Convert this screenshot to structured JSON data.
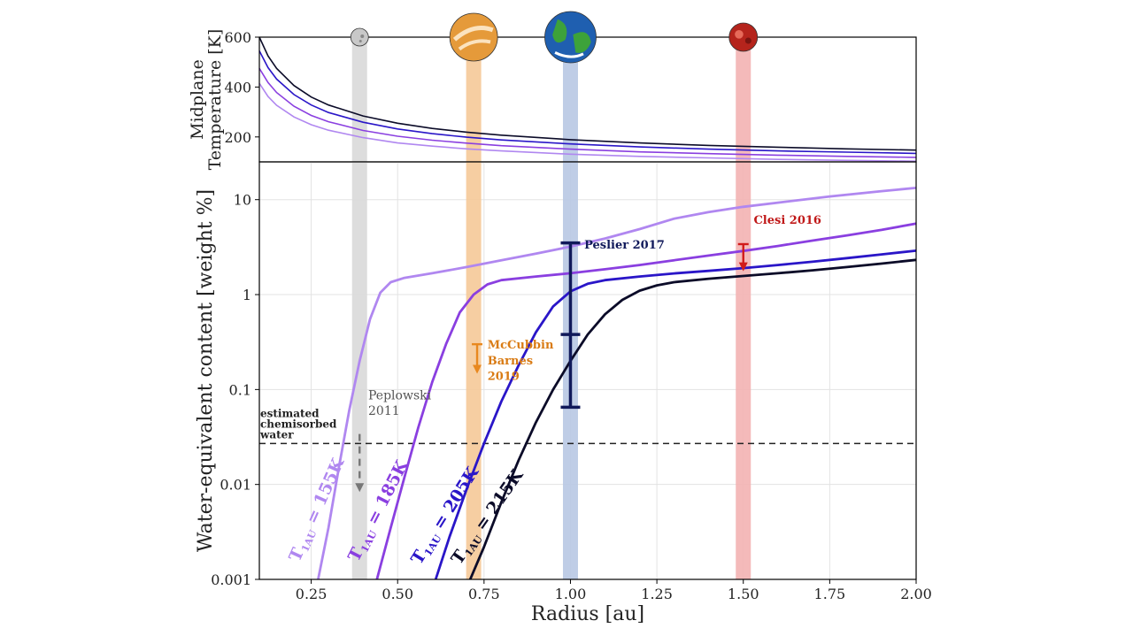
{
  "chart_data": [
    {
      "type": "line",
      "panel": "top",
      "ylabel_lines": [
        "Midplane",
        "Temperature [K]"
      ],
      "xlim": [
        0.1,
        2.0
      ],
      "ylim": [
        100,
        600
      ],
      "yticks": [
        200,
        400,
        600
      ],
      "ytick_labels": [
        "200",
        "400",
        "600"
      ],
      "grid": false,
      "x": [
        0.1,
        0.125,
        0.15,
        0.2,
        0.25,
        0.3,
        0.4,
        0.5,
        0.6,
        0.7,
        0.8,
        1.0,
        1.2,
        1.4,
        1.6,
        1.8,
        2.0
      ],
      "series": [
        {
          "color": "#b087f0",
          "values": [
            415,
            362,
            327,
            280,
            249,
            227,
            197,
            176,
            163,
            152,
            144,
            131,
            122,
            116,
            110,
            106,
            103
          ]
        },
        {
          "color": "#8a3fe0",
          "values": [
            475,
            418,
            378,
            323,
            286,
            261,
            226,
            203,
            187,
            175,
            165,
            151,
            140,
            133,
            127,
            122,
            118
          ]
        },
        {
          "color": "#2a16c8",
          "values": [
            545,
            478,
            432,
            370,
            328,
            298,
            259,
            232,
            213,
            199,
            188,
            172,
            160,
            151,
            144,
            139,
            134
          ]
        },
        {
          "color": "#0b0b28",
          "values": [
            600,
            525,
            475,
            406,
            360,
            328,
            284,
            255,
            234,
            219,
            207,
            189,
            176,
            166,
            159,
            152,
            147
          ]
        }
      ],
      "bands": [
        {
          "center": 0.39,
          "color": "#d9d9d9"
        },
        {
          "center": 0.72,
          "color": "#f5c998"
        },
        {
          "center": 1.0,
          "color": "#b8c8e3"
        },
        {
          "center": 1.5,
          "color": "#f3b3b3"
        }
      ],
      "planet_icons": [
        {
          "name": "mercury-icon",
          "x": 0.39,
          "fill": "#c8c8c8",
          "accent": "#888888"
        },
        {
          "name": "venus-icon",
          "x": 0.72,
          "fill": "#e59a3a",
          "accent": "#fbe3bf"
        },
        {
          "name": "earth-icon",
          "x": 1.0,
          "fill": "#1f5fb0",
          "accent": "#3da23a"
        },
        {
          "name": "mars-icon",
          "x": 1.5,
          "fill": "#b5241c",
          "accent": "#e66a5a"
        }
      ]
    },
    {
      "type": "line",
      "panel": "bottom",
      "xlabel": "Radius [au]",
      "ylabel": "Water-equivalent content [weight %]",
      "xlim": [
        0.1,
        2.0
      ],
      "ylim": [
        0.001,
        25
      ],
      "yscale": "log",
      "xticks": [
        0.25,
        0.5,
        0.75,
        1.0,
        1.25,
        1.5,
        1.75,
        2.0
      ],
      "xtick_labels": [
        "0.25",
        "0.50",
        "0.75",
        "1.00",
        "1.25",
        "1.50",
        "1.75",
        "2.00"
      ],
      "yticks": [
        0.001,
        0.01,
        0.1,
        1,
        10
      ],
      "ytick_labels": [
        "0.001",
        "0.01",
        "0.1",
        "1",
        "10"
      ],
      "grid": true,
      "series": [
        {
          "label": "T_1AU = 155K",
          "label_main": "T",
          "label_sub": "1AU",
          "label_rest": " = 155K",
          "color": "#b087f0",
          "points": [
            [
              0.27,
              0.001
            ],
            [
              0.3,
              0.0035
            ],
            [
              0.33,
              0.015
            ],
            [
              0.36,
              0.06
            ],
            [
              0.39,
              0.2
            ],
            [
              0.42,
              0.55
            ],
            [
              0.45,
              1.05
            ],
            [
              0.48,
              1.35
            ],
            [
              0.52,
              1.5
            ],
            [
              0.6,
              1.68
            ],
            [
              0.7,
              1.95
            ],
            [
              0.8,
              2.3
            ],
            [
              0.9,
              2.7
            ],
            [
              1.0,
              3.2
            ],
            [
              1.1,
              3.9
            ],
            [
              1.2,
              4.9
            ],
            [
              1.3,
              6.3
            ],
            [
              1.4,
              7.4
            ],
            [
              1.5,
              8.4
            ],
            [
              1.6,
              9.3
            ],
            [
              1.75,
              10.8
            ],
            [
              1.9,
              12.3
            ],
            [
              2.0,
              13.3
            ]
          ]
        },
        {
          "label": "T_1AU = 185K",
          "label_main": "T",
          "label_sub": "1AU",
          "label_rest": " = 185K",
          "color": "#8a3fe0",
          "points": [
            [
              0.44,
              0.001
            ],
            [
              0.48,
              0.0035
            ],
            [
              0.52,
              0.012
            ],
            [
              0.56,
              0.04
            ],
            [
              0.6,
              0.12
            ],
            [
              0.64,
              0.3
            ],
            [
              0.68,
              0.65
            ],
            [
              0.72,
              1.0
            ],
            [
              0.76,
              1.28
            ],
            [
              0.8,
              1.42
            ],
            [
              0.9,
              1.55
            ],
            [
              1.0,
              1.68
            ],
            [
              1.1,
              1.85
            ],
            [
              1.2,
              2.05
            ],
            [
              1.3,
              2.3
            ],
            [
              1.4,
              2.58
            ],
            [
              1.5,
              2.88
            ],
            [
              1.6,
              3.25
            ],
            [
              1.7,
              3.7
            ],
            [
              1.8,
              4.2
            ],
            [
              1.9,
              4.8
            ],
            [
              2.0,
              5.6
            ]
          ]
        },
        {
          "label": "T_1AU = 205K",
          "label_main": "T",
          "label_sub": "1AU",
          "label_rest": " = 205K",
          "color": "#2a16c8",
          "points": [
            [
              0.61,
              0.001
            ],
            [
              0.65,
              0.0028
            ],
            [
              0.7,
              0.009
            ],
            [
              0.75,
              0.027
            ],
            [
              0.8,
              0.075
            ],
            [
              0.85,
              0.18
            ],
            [
              0.9,
              0.4
            ],
            [
              0.95,
              0.75
            ],
            [
              1.0,
              1.08
            ],
            [
              1.05,
              1.3
            ],
            [
              1.1,
              1.42
            ],
            [
              1.2,
              1.55
            ],
            [
              1.3,
              1.67
            ],
            [
              1.4,
              1.78
            ],
            [
              1.5,
              1.9
            ],
            [
              1.6,
              2.05
            ],
            [
              1.7,
              2.22
            ],
            [
              1.8,
              2.42
            ],
            [
              1.9,
              2.65
            ],
            [
              2.0,
              2.9
            ]
          ]
        },
        {
          "label": "T_1AU = 215K",
          "label_main": "T",
          "label_sub": "1AU",
          "label_rest": " = 215K",
          "color": "#0b0b28",
          "points": [
            [
              0.71,
              0.001
            ],
            [
              0.75,
              0.0022
            ],
            [
              0.8,
              0.0065
            ],
            [
              0.85,
              0.018
            ],
            [
              0.9,
              0.045
            ],
            [
              0.95,
              0.1
            ],
            [
              1.0,
              0.2
            ],
            [
              1.05,
              0.38
            ],
            [
              1.1,
              0.62
            ],
            [
              1.15,
              0.88
            ],
            [
              1.2,
              1.1
            ],
            [
              1.25,
              1.25
            ],
            [
              1.3,
              1.35
            ],
            [
              1.4,
              1.47
            ],
            [
              1.5,
              1.57
            ],
            [
              1.6,
              1.68
            ],
            [
              1.7,
              1.8
            ],
            [
              1.8,
              1.95
            ],
            [
              1.9,
              2.12
            ],
            [
              2.0,
              2.32
            ]
          ]
        }
      ],
      "bands": [
        {
          "center": 0.39,
          "color": "#d9d9d9"
        },
        {
          "center": 0.72,
          "color": "#f5c998"
        },
        {
          "center": 1.0,
          "color": "#b8c8e3"
        },
        {
          "center": 1.5,
          "color": "#f3b3b3"
        }
      ],
      "hline": {
        "y": 0.027,
        "style": "dashed",
        "color": "#222222"
      },
      "hline_label": [
        "estimated",
        "chemisorbed",
        "water"
      ],
      "error_bars": [
        {
          "x": 1.0,
          "y_low": 0.065,
          "y_mid": 0.38,
          "y_high": 3.5,
          "color": "#10195a"
        }
      ],
      "arrows": [
        {
          "x": 0.73,
          "y_from": 0.3,
          "y_to": 0.15,
          "color": "#e8881f"
        },
        {
          "x": 1.5,
          "y_from": 3.4,
          "y_to": 1.8,
          "color": "#d11a1a"
        },
        {
          "x": 0.39,
          "y_from": 0.034,
          "y_to": 0.0085,
          "color": "#777777",
          "dashed": true
        }
      ],
      "annotations": [
        {
          "text": "Peslier 2017",
          "color": "#10195a",
          "bold": true,
          "x": 1.04,
          "y": 3.4
        },
        {
          "text": "Clesi 2016",
          "color": "#c01818",
          "bold": true,
          "x": 1.53,
          "y": 6.2
        },
        {
          "text": "McCubbin",
          "color": "#d97b14",
          "bold": true,
          "x": 0.76,
          "y": 0.3
        },
        {
          "text": "Barnes",
          "color": "#d97b14",
          "bold": true,
          "x": 0.76,
          "y": 0.205
        },
        {
          "text": "2019",
          "color": "#d97b14",
          "bold": true,
          "x": 0.76,
          "y": 0.14
        },
        {
          "text": "Peplowski",
          "color": "#555555",
          "bold": false,
          "x": 0.415,
          "y": 0.088
        },
        {
          "text": "2011",
          "color": "#555555",
          "bold": false,
          "x": 0.415,
          "y": 0.06
        }
      ],
      "curve_labels": [
        {
          "series": 0,
          "x": 0.215,
          "y": 0.0015,
          "angle": -66
        },
        {
          "series": 1,
          "x": 0.385,
          "y": 0.0015,
          "angle": -63
        },
        {
          "series": 2,
          "x": 0.565,
          "y": 0.0014,
          "angle": -58
        },
        {
          "series": 3,
          "x": 0.68,
          "y": 0.0014,
          "angle": -55
        }
      ]
    }
  ]
}
